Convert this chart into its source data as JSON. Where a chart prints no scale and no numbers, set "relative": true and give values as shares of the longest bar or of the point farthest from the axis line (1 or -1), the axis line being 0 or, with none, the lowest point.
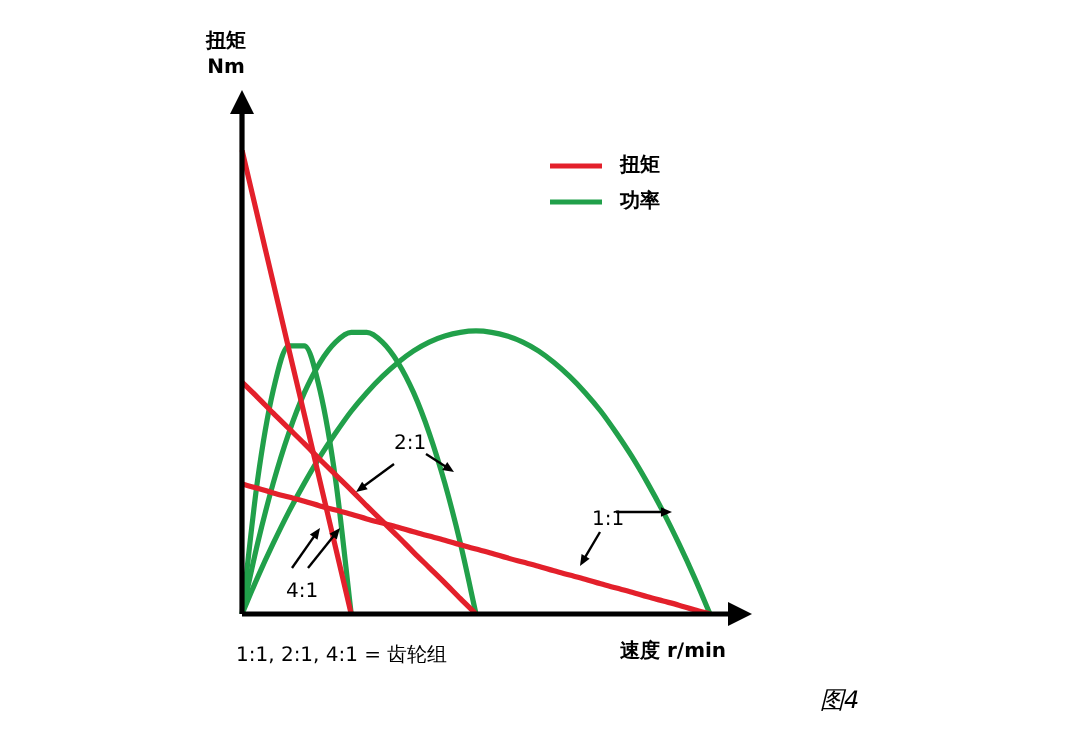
{
  "chart_data": {
    "type": "line",
    "relative": true,
    "xlabel": "速度 r/min",
    "ylabel": "扭矩\nNm",
    "legend": "top right",
    "marker": "none",
    "line_style": "solid",
    "categories": [
      null,
      null,
      null,
      null,
      null,
      null,
      null,
      null,
      null,
      null,
      null,
      null,
      null,
      null,
      null,
      null,
      null,
      null,
      null,
      null,
      null,
      null,
      null,
      null,
      null,
      null,
      null,
      null,
      null,
      null,
      null
    ],
    "series": [
      {
        "name": "扭矩",
        "color": "#e3202b",
        "values": [
          1,
          0.857,
          0.714,
          0.571,
          0.429,
          0.286,
          0.143,
          0,
          null,
          null,
          null,
          null,
          null,
          null,
          null,
          null,
          null,
          null,
          null,
          null,
          null,
          null,
          null,
          null,
          null,
          null,
          null,
          null,
          null,
          null,
          null
        ]
      },
      {
        "color": "#e3202b",
        "values": [
          0.5,
          0.467,
          0.433,
          0.4,
          0.367,
          0.333,
          0.3,
          0.267,
          0.233,
          0.2,
          0.167,
          0.133,
          0.1,
          0.067,
          0.033,
          0,
          null,
          null,
          null,
          null,
          null,
          null,
          null,
          null,
          null,
          null,
          null,
          null,
          null,
          null,
          null
        ]
      },
      {
        "color": "#e3202b",
        "values": [
          0.28,
          0.271,
          0.261,
          0.252,
          0.243,
          0.233,
          0.224,
          0.215,
          0.205,
          0.196,
          0.187,
          0.177,
          0.168,
          0.159,
          0.149,
          0.14,
          0.131,
          0.121,
          0.112,
          0.103,
          0.093,
          0.084,
          0.075,
          0.065,
          0.056,
          0.047,
          0.037,
          0.028,
          0.019,
          0.009,
          0
        ]
      },
      {
        "name": "功率",
        "color": "#21a04a",
        "values": [
          0,
          0.289,
          0.482,
          0.578,
          0.578,
          0.482,
          0.289,
          0,
          null,
          null,
          null,
          null,
          null,
          null,
          null,
          null,
          null,
          null,
          null,
          null,
          null,
          null,
          null,
          null,
          null,
          null,
          null,
          null,
          null,
          null,
          null
        ]
      },
      {
        "color": "#21a04a",
        "values": [
          0,
          0.152,
          0.282,
          0.39,
          0.477,
          0.542,
          0.586,
          0.607,
          0.607,
          0.586,
          0.542,
          0.477,
          0.39,
          0.282,
          0.152,
          0,
          null,
          null,
          null,
          null,
          null,
          null,
          null,
          null,
          null,
          null,
          null,
          null,
          null,
          null,
          null
        ]
      },
      {
        "color": "#21a04a",
        "values": [
          0,
          0.079,
          0.152,
          0.22,
          0.282,
          0.339,
          0.39,
          0.437,
          0.477,
          0.512,
          0.542,
          0.567,
          0.586,
          0.599,
          0.607,
          0.61,
          0.607,
          0.599,
          0.586,
          0.567,
          0.542,
          0.512,
          0.477,
          0.437,
          0.39,
          0.339,
          0.282,
          0.22,
          0.152,
          0.079,
          0
        ]
      }
    ],
    "annotations": [
      "2:1",
      "1:1",
      "4:1",
      "1:1, 2:1, 4:1 = 齿轮组",
      "图4"
    ]
  }
}
